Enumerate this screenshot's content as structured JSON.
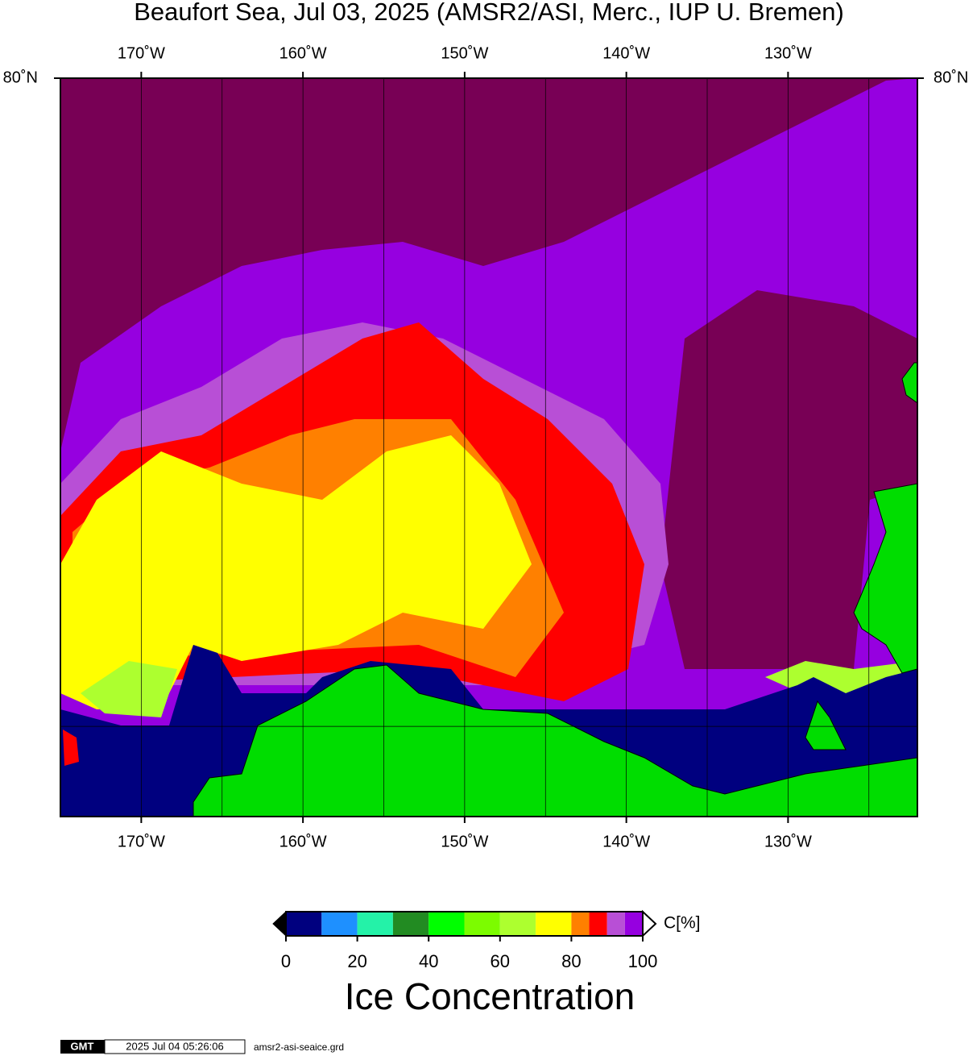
{
  "title": "Beaufort Sea, Jul 03, 2025 (AMSR2/ASI, Merc., IUP U. Bremen)",
  "map": {
    "projection": "mercator",
    "xlim": [
      -175,
      -122
    ],
    "ylim": [
      68,
      80
    ],
    "xticks": [
      {
        "value": -170,
        "label": "170˚W"
      },
      {
        "value": -160,
        "label": "160˚W"
      },
      {
        "value": -150,
        "label": "150˚W"
      },
      {
        "value": -140,
        "label": "140˚W"
      },
      {
        "value": -130,
        "label": "130˚W"
      }
    ],
    "yticks": [
      {
        "value": 80,
        "label": "80˚N"
      }
    ],
    "x_gridlines": [
      -165,
      -155,
      -145,
      -135,
      -125
    ],
    "y_gridlines": [
      70
    ]
  },
  "colorbar": {
    "bounds": [
      0,
      10,
      20,
      30,
      40,
      50,
      60,
      70,
      80,
      85,
      90,
      95,
      100
    ],
    "colors": [
      "#00007f",
      "#1e90ff",
      "#24f2a8",
      "#228b22",
      "#00ff00",
      "#7cfc00",
      "#adff2f",
      "#ffff00",
      "#ff8000",
      "#ff0000",
      "#b84fd6",
      "#9600e0"
    ],
    "ticks": [
      0,
      20,
      40,
      60,
      80,
      100
    ],
    "unit": "C[%]",
    "label": "Ice Concentration",
    "below_color": "#000000",
    "above_color": "#ffffff"
  },
  "footer": {
    "logo": "GMT",
    "timestamp": "2025 Jul 04 05:26:06",
    "file": "amsr2-asi-seaice.grd"
  }
}
